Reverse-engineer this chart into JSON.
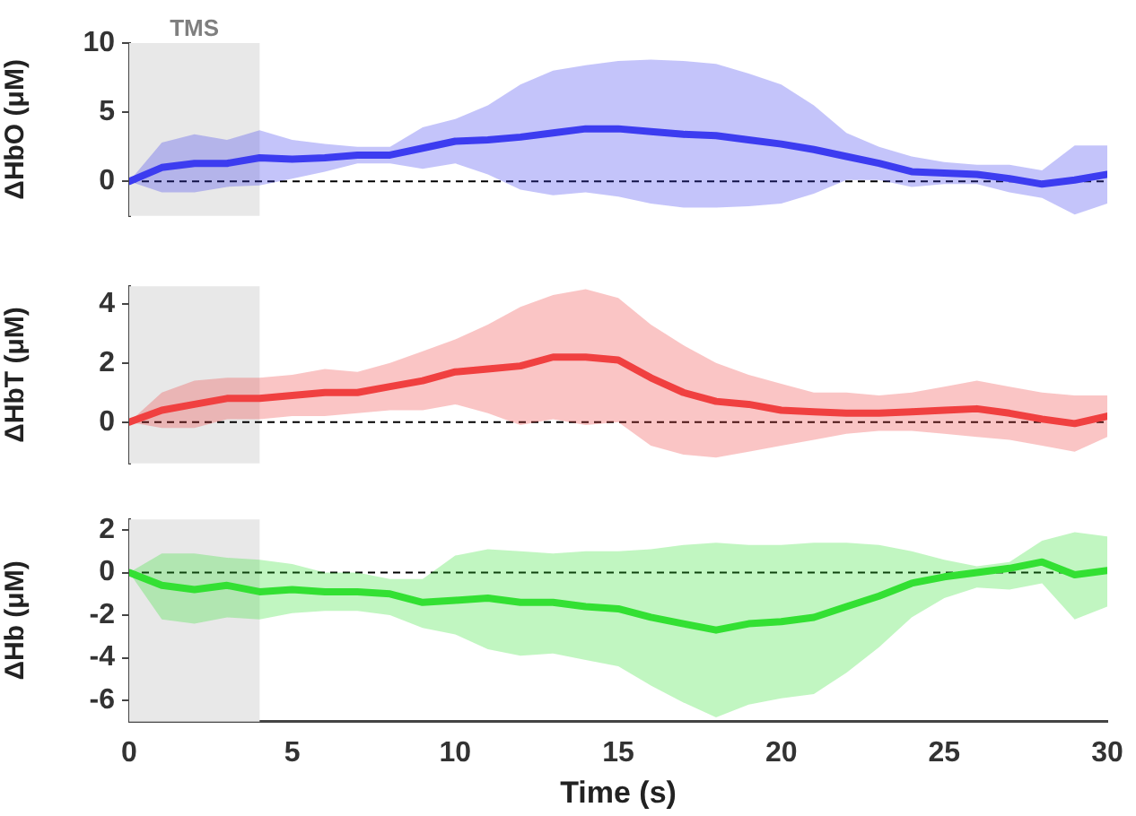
{
  "chart_data": [
    {
      "type": "line",
      "ylabel": "ΔHbO (μM)",
      "xlim": [
        0,
        30
      ],
      "xticks": [
        0,
        5,
        10,
        15,
        20,
        25,
        30
      ],
      "ylim": [
        -2.5,
        10
      ],
      "yticks": [
        0,
        5,
        10
      ],
      "tick_labels": "y",
      "x": [
        0,
        1,
        2,
        3,
        4,
        5,
        6,
        7,
        8,
        9,
        10,
        11,
        12,
        13,
        14,
        15,
        16,
        17,
        18,
        19,
        20,
        21,
        22,
        23,
        24,
        25,
        26,
        27,
        28,
        29,
        30
      ],
      "series": [
        {
          "color": "#3c3cf0",
          "values": [
            0,
            1.0,
            1.3,
            1.3,
            1.7,
            1.6,
            1.7,
            1.9,
            1.9,
            2.4,
            2.9,
            3.0,
            3.2,
            3.5,
            3.8,
            3.8,
            3.6,
            3.4,
            3.3,
            3.0,
            2.7,
            2.3,
            1.8,
            1.3,
            0.7,
            0.6,
            0.5,
            0.2,
            -0.2,
            0.1,
            0.5
          ],
          "upper": [
            0,
            2.8,
            3.4,
            3.0,
            3.7,
            3.0,
            2.7,
            2.5,
            2.5,
            3.9,
            4.5,
            5.5,
            7.0,
            8.0,
            8.4,
            8.7,
            8.8,
            8.7,
            8.5,
            7.8,
            7.0,
            5.5,
            3.5,
            2.5,
            1.8,
            1.4,
            1.2,
            1.2,
            0.8,
            2.6,
            2.6
          ],
          "lower": [
            0,
            -0.8,
            -0.8,
            -0.4,
            -0.3,
            0.2,
            0.7,
            1.3,
            1.3,
            0.9,
            1.3,
            0.5,
            -0.6,
            -1.0,
            -0.8,
            -1.1,
            -1.6,
            -1.9,
            -1.9,
            -1.8,
            -1.6,
            -0.9,
            0.1,
            0.1,
            -0.4,
            -0.2,
            -0.2,
            -0.8,
            -1.2,
            -2.4,
            -1.6
          ]
        }
      ],
      "ref_lines": [
        {
          "axis": "y",
          "value": 0,
          "color": "#000000",
          "line_style": "dashed"
        }
      ],
      "bands": [
        {
          "axis": "x",
          "from": 0,
          "to": 4,
          "label": "TMS",
          "color": "#e8e8e8"
        }
      ]
    },
    {
      "type": "line",
      "ylabel": "ΔHbT (μM)",
      "xlim": [
        0,
        30
      ],
      "xticks": [
        0,
        5,
        10,
        15,
        20,
        25,
        30
      ],
      "ylim": [
        -1.4,
        4.6
      ],
      "yticks": [
        0,
        2,
        4
      ],
      "tick_labels": "y",
      "x": [
        0,
        1,
        2,
        3,
        4,
        5,
        6,
        7,
        8,
        9,
        10,
        11,
        12,
        13,
        14,
        15,
        16,
        17,
        18,
        19,
        20,
        21,
        22,
        23,
        24,
        25,
        26,
        27,
        28,
        29,
        30
      ],
      "series": [
        {
          "color": "#f04040",
          "values": [
            0,
            0.4,
            0.6,
            0.8,
            0.8,
            0.9,
            1.0,
            1.0,
            1.2,
            1.4,
            1.7,
            1.8,
            1.9,
            2.2,
            2.2,
            2.1,
            1.5,
            1.0,
            0.7,
            0.6,
            0.4,
            0.35,
            0.3,
            0.3,
            0.35,
            0.4,
            0.45,
            0.3,
            0.1,
            -0.05,
            0.2
          ],
          "upper": [
            0,
            1.0,
            1.4,
            1.5,
            1.5,
            1.6,
            1.8,
            1.7,
            2.0,
            2.4,
            2.8,
            3.3,
            3.9,
            4.3,
            4.5,
            4.2,
            3.3,
            2.6,
            2.0,
            1.6,
            1.3,
            1.0,
            1.0,
            0.9,
            1.0,
            1.2,
            1.4,
            1.2,
            1.0,
            0.9,
            0.9
          ],
          "lower": [
            0,
            -0.2,
            -0.2,
            0.1,
            0.1,
            0.2,
            0.2,
            0.3,
            0.4,
            0.4,
            0.6,
            0.3,
            -0.1,
            0.1,
            -0.1,
            0.0,
            -0.8,
            -1.1,
            -1.2,
            -1.0,
            -0.8,
            -0.6,
            -0.4,
            -0.3,
            -0.3,
            -0.4,
            -0.5,
            -0.6,
            -0.8,
            -1.0,
            -0.5
          ]
        }
      ],
      "ref_lines": [
        {
          "axis": "y",
          "value": 0,
          "color": "#000000",
          "line_style": "dashed"
        }
      ],
      "bands": [
        {
          "axis": "x",
          "from": 0,
          "to": 4,
          "color": "#e8e8e8"
        }
      ]
    },
    {
      "type": "line",
      "ylabel": "ΔHb (μM)",
      "xlabel": "Time (s)",
      "xlim": [
        0,
        30
      ],
      "xticks": [
        0,
        5,
        10,
        15,
        20,
        25,
        30
      ],
      "ylim": [
        -7,
        2.5
      ],
      "yticks": [
        -6,
        -4,
        -2,
        0,
        2
      ],
      "x": [
        0,
        1,
        2,
        3,
        4,
        5,
        6,
        7,
        8,
        9,
        10,
        11,
        12,
        13,
        14,
        15,
        16,
        17,
        18,
        19,
        20,
        21,
        22,
        23,
        24,
        25,
        26,
        27,
        28,
        29,
        30
      ],
      "series": [
        {
          "color": "#33e033",
          "values": [
            0,
            -0.6,
            -0.8,
            -0.6,
            -0.9,
            -0.8,
            -0.9,
            -0.9,
            -1.0,
            -1.4,
            -1.3,
            -1.2,
            -1.4,
            -1.4,
            -1.6,
            -1.7,
            -2.1,
            -2.4,
            -2.7,
            -2.4,
            -2.3,
            -2.1,
            -1.6,
            -1.1,
            -0.5,
            -0.2,
            0.0,
            0.2,
            0.5,
            -0.1,
            0.1
          ],
          "upper": [
            0,
            0.9,
            0.9,
            0.7,
            0.6,
            0.4,
            0.0,
            0.0,
            -0.3,
            -0.3,
            0.8,
            1.1,
            1.0,
            0.9,
            1.0,
            1.0,
            1.1,
            1.3,
            1.4,
            1.3,
            1.3,
            1.4,
            1.4,
            1.3,
            1.0,
            0.6,
            0.3,
            0.5,
            1.5,
            1.9,
            1.7
          ],
          "lower": [
            0,
            -2.2,
            -2.4,
            -2.1,
            -2.2,
            -1.9,
            -1.8,
            -1.8,
            -2.0,
            -2.6,
            -2.9,
            -3.6,
            -3.9,
            -3.8,
            -4.1,
            -4.4,
            -5.3,
            -6.1,
            -6.8,
            -6.2,
            -5.9,
            -5.7,
            -4.7,
            -3.5,
            -2.1,
            -1.2,
            -0.7,
            -0.8,
            -0.5,
            -2.2,
            -1.6
          ]
        }
      ],
      "ref_lines": [
        {
          "axis": "y",
          "value": 0,
          "color": "#000000",
          "line_style": "dashed"
        }
      ],
      "bands": [
        {
          "axis": "x",
          "from": 0,
          "to": 4,
          "color": "#e8e8e8"
        }
      ]
    }
  ]
}
